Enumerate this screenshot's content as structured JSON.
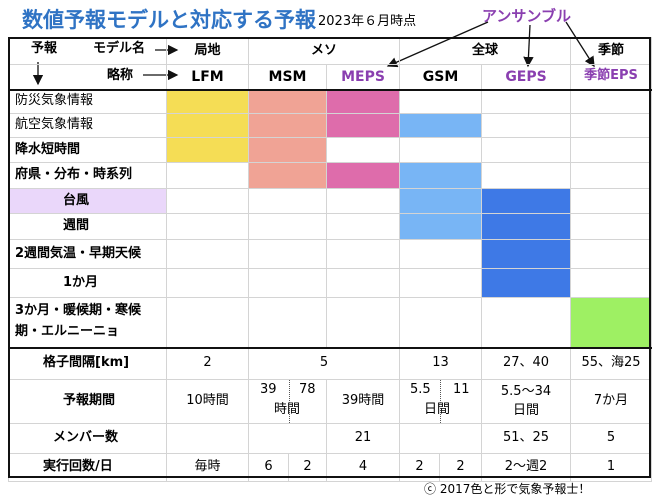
{
  "title": "数値予報モデルと対応する予報",
  "subtitle": "2023年６月時点",
  "ensemble_label": "アンサンブル",
  "credit": "ⓒ 2017色と形で気象予報士！",
  "header": {
    "forecast": "予報",
    "model_name": "モデル名",
    "abbrev": "略称",
    "groups": {
      "local": "局地",
      "meso": "メソ",
      "global": "全球",
      "seasonal": "季節"
    },
    "models": {
      "lfm": "LFM",
      "msm": "MSM",
      "meps": "MEPS",
      "gsm": "GSM",
      "geps": "GEPS",
      "seps": "季節EPS"
    }
  },
  "forecasts": {
    "bousai": "防災気象情報",
    "koukuu": "航空気象情報",
    "kousui": "降水短時間",
    "fuken": "府県・分布・時系列",
    "taifuu": "台風",
    "shuukan": "週間",
    "twoweek": "2週間気温・早期天候",
    "onemonth": "1か月",
    "threemonth_line1": "3か月・暖候期・寒候",
    "threemonth_line2": "期・エルニーニョ"
  },
  "specs": {
    "grid_label": "格子間隔[km]",
    "grid": {
      "lfm": "2",
      "meso": "5",
      "gsm": "13",
      "geps": "27、40",
      "seps": "55、海25"
    },
    "period_label": "予報期間",
    "period": {
      "lfm": "10時間",
      "msm_a": "39",
      "msm_b": "78",
      "msm_unit": "時間",
      "meps": "39時間",
      "gsm_a": "5.5",
      "gsm_b": "11",
      "gsm_unit": "日間",
      "geps_a": "5.5〜34",
      "geps_b": "日間",
      "seps": "7か月"
    },
    "members_label": "メンバー数",
    "members": {
      "meps": "21",
      "geps": "51、25",
      "seps": "5"
    },
    "runs_label": "実行回数/日",
    "runs": {
      "lfm": "毎時",
      "msm_a": "6",
      "msm_b": "2",
      "meps": "4",
      "gsm_a": "2",
      "gsm_b": "2",
      "geps": "2〜週2",
      "seps": "1"
    }
  },
  "colors": {
    "title": "#2f73c4",
    "ensemble": "#8a3fb0",
    "lfm": "#f5dd55",
    "msm": "#f0a395",
    "meps": "#de6cab",
    "gsm": "#78b5f5",
    "geps": "#3e79e6",
    "seps": "#9ef063",
    "typhoon_label": "#ead7fa"
  }
}
